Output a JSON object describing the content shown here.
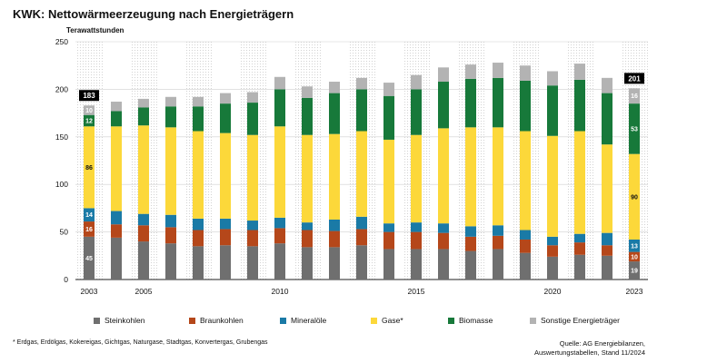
{
  "title": "KWK: Nettowärmeerzeugung nach Energieträgern",
  "footnote": "* Erdgas, Erdölgas, Kokereigas, Gichtgas, Naturgase, Stadtgas, Konvertergas, Grubengas",
  "source": {
    "line1": "Quelle: AG Energiebilanzen,",
    "line2": "Auswertungstabellen, Stand 11/2024"
  },
  "chart_data": {
    "type": "bar",
    "stacked": true,
    "ylabel": "Terawattstunden",
    "ylim": [
      0,
      250
    ],
    "yticks": [
      0,
      50,
      100,
      150,
      200,
      250
    ],
    "categories": [
      "2003",
      "2004",
      "2005",
      "2006",
      "2007",
      "2008",
      "2009",
      "2010",
      "2011",
      "2012",
      "2013",
      "2014",
      "2015",
      "2016",
      "2017",
      "2018",
      "2019",
      "2020",
      "2021",
      "2022",
      "2023"
    ],
    "x_tick_labels": [
      "2003",
      "",
      "2005",
      "",
      "",
      "",
      "",
      "2010",
      "",
      "",
      "",
      "",
      "2015",
      "",
      "",
      "",
      "",
      "2020",
      "",
      "",
      "2023"
    ],
    "series": [
      {
        "name": "Steinkohlen",
        "color": "#6f6f6f",
        "values": [
          45,
          44,
          40,
          38,
          35,
          36,
          35,
          38,
          34,
          34,
          36,
          32,
          32,
          32,
          30,
          32,
          28,
          24,
          26,
          25,
          19
        ]
      },
      {
        "name": "Braunkohlen",
        "color": "#b5471a",
        "values": [
          16,
          14,
          17,
          17,
          17,
          17,
          17,
          16,
          18,
          17,
          17,
          18,
          18,
          17,
          15,
          14,
          14,
          12,
          13,
          11,
          10
        ]
      },
      {
        "name": "Mineralöle",
        "color": "#1a7aa6",
        "values": [
          14,
          14,
          12,
          13,
          12,
          11,
          10,
          11,
          8,
          12,
          13,
          9,
          10,
          10,
          11,
          11,
          10,
          9,
          9,
          13,
          13
        ]
      },
      {
        "name": "Gase*",
        "color": "#fcd83a",
        "values": [
          86,
          89,
          93,
          92,
          92,
          90,
          90,
          96,
          92,
          90,
          90,
          88,
          92,
          100,
          104,
          103,
          104,
          106,
          108,
          93,
          90
        ]
      },
      {
        "name": "Biomasse",
        "color": "#17793a",
        "values": [
          12,
          16,
          19,
          22,
          26,
          31,
          34,
          39,
          39,
          43,
          44,
          46,
          48,
          49,
          51,
          52,
          53,
          53,
          54,
          54,
          53
        ]
      },
      {
        "name": "Sonstige Energieträger",
        "color": "#b3b3b3",
        "values": [
          10,
          10,
          9,
          10,
          10,
          11,
          11,
          13,
          12,
          12,
          12,
          14,
          15,
          15,
          15,
          16,
          16,
          15,
          17,
          16,
          16
        ]
      }
    ],
    "totals": [
      {
        "year": "2003",
        "value": 183
      },
      {
        "year": "2023",
        "value": 201
      }
    ],
    "data_labels": {
      "2003": {
        "Steinkohlen": "45",
        "Braunkohlen": "16",
        "Mineralöle": "14",
        "Gase*": "86",
        "Biomasse": "12",
        "Sonstige Energieträger": "10"
      },
      "2023": {
        "Steinkohlen": "19",
        "Braunkohlen": "10",
        "Mineralöle": "13",
        "Gase*": "90",
        "Biomasse": "53",
        "Sonstige Energieträger": "16"
      }
    },
    "legend_position": "bottom"
  }
}
